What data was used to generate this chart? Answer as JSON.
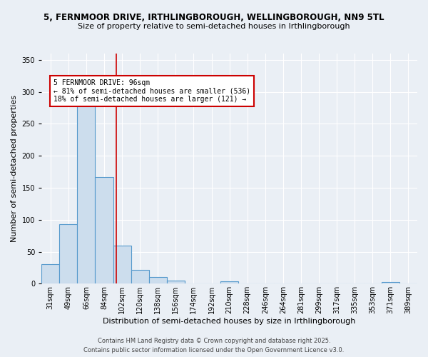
{
  "title_line1": "5, FERNMOOR DRIVE, IRTHLINGBOROUGH, WELLINGBOROUGH, NN9 5TL",
  "title_line2": "Size of property relative to semi-detached houses in Irthlingborough",
  "xlabel": "Distribution of semi-detached houses by size in Irthlingborough",
  "ylabel": "Number of semi-detached properties",
  "bin_labels": [
    "31sqm",
    "49sqm",
    "66sqm",
    "84sqm",
    "102sqm",
    "120sqm",
    "138sqm",
    "156sqm",
    "174sqm",
    "192sqm",
    "210sqm",
    "228sqm",
    "246sqm",
    "264sqm",
    "281sqm",
    "299sqm",
    "317sqm",
    "335sqm",
    "353sqm",
    "371sqm",
    "389sqm"
  ],
  "bin_values": [
    30,
    93,
    280,
    167,
    60,
    22,
    10,
    5,
    0,
    0,
    4,
    0,
    0,
    0,
    0,
    0,
    0,
    0,
    0,
    3,
    0
  ],
  "bar_color": "#ccdded",
  "bar_edge_color": "#5599cc",
  "property_size": 96,
  "pct_smaller": 81,
  "n_smaller": 536,
  "pct_larger": 18,
  "n_larger": 121,
  "annotation_text_line1": "5 FERNMOOR DRIVE: 96sqm",
  "annotation_text_line2": "← 81% of semi-detached houses are smaller (536)",
  "annotation_text_line3": "18% of semi-detached houses are larger (121) →",
  "footer_line1": "Contains HM Land Registry data © Crown copyright and database right 2025.",
  "footer_line2": "Contains public sector information licensed under the Open Government Licence v3.0.",
  "ylim": [
    0,
    360
  ],
  "yticks": [
    0,
    50,
    100,
    150,
    200,
    250,
    300,
    350
  ],
  "bg_color": "#eaeff5",
  "grid_color": "#ffffff",
  "annotation_box_color": "#ffffff",
  "annotation_box_edge": "#cc0000",
  "red_line_color": "#cc0000",
  "title_fontsize": 8.5,
  "subtitle_fontsize": 8,
  "axis_label_fontsize": 8,
  "tick_fontsize": 7,
  "annotation_fontsize": 7,
  "footer_fontsize": 6
}
